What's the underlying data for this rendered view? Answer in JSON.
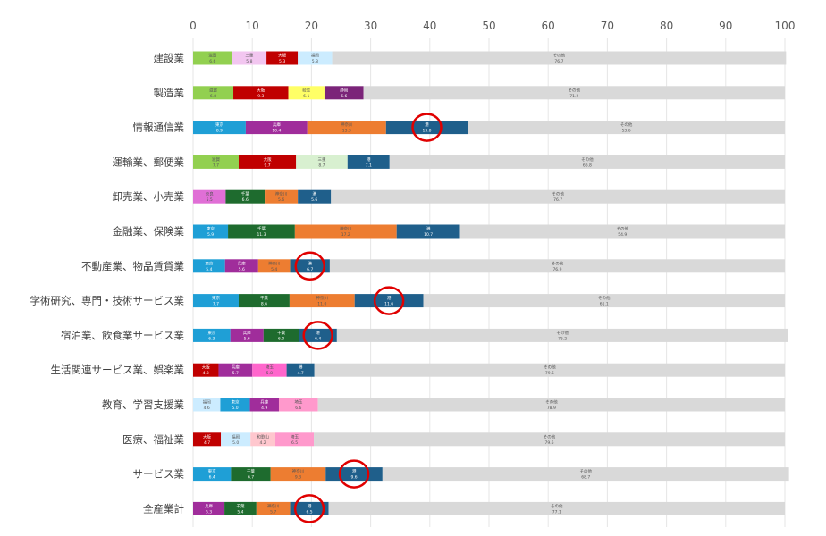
{
  "chart_data": {
    "type": "bar",
    "orientation": "horizontal",
    "stacked": true,
    "title": "",
    "xlabel": "",
    "ylabel": "",
    "xlim": [
      0,
      100
    ],
    "xticks": [
      "0",
      "10",
      "20",
      "30",
      "40",
      "50",
      "60",
      "70",
      "80",
      "90",
      "100"
    ],
    "grid": "vertical",
    "legend": "none",
    "colors": {
      "滋賀": "#92d050",
      "三重": "#c6efce",
      "京都": "#ddebf7",
      "大阪": "#c00000",
      "兵庫": "#9b2d91",
      "奈良": "#e06fd6",
      "和歌山": "#ffc7ce",
      "岐阜": "#ffff66",
      "静岡": "#7030a0",
      "愛知": "#00b050",
      "東京": "#1f9fd6",
      "千葉": "#1e6b2e",
      "埼玉": "#ff66cc",
      "神奈川": "#ed7d31",
      "福岡": "#ccecff",
      "港": "#1f5f8b",
      "その他": "#d9d9d9"
    },
    "categories": [
      {
        "label": "建設業",
        "segments": [
          {
            "name": "滋賀",
            "value": 6.6,
            "color": "#92d050"
          },
          {
            "name": "三重",
            "value": 5.8,
            "color": "#f2c6f0"
          },
          {
            "name": "大阪",
            "value": 5.3,
            "color": "#c00000"
          },
          {
            "name": "福岡",
            "value": 5.8,
            "color": "#ccecff"
          },
          {
            "name": "その他",
            "value": 76.7,
            "color": "#d9d9d9"
          }
        ]
      },
      {
        "label": "製造業",
        "segments": [
          {
            "name": "滋賀",
            "value": 6.8,
            "color": "#92d050"
          },
          {
            "name": "大阪",
            "value": 9.3,
            "color": "#c00000"
          },
          {
            "name": "岐阜",
            "value": 6.1,
            "color": "#ffff66"
          },
          {
            "name": "静岡",
            "value": 6.6,
            "color": "#7b2479"
          },
          {
            "name": "その他",
            "value": 71.2,
            "color": "#d9d9d9"
          }
        ]
      },
      {
        "label": "情報通信業",
        "segments": [
          {
            "name": "東京",
            "value": 8.9,
            "color": "#1f9fd6"
          },
          {
            "name": "兵庫",
            "value": 10.4,
            "color": "#a02d9b"
          },
          {
            "name": "神奈川",
            "value": 13.3,
            "color": "#ed7d31"
          },
          {
            "name": "港",
            "value": 13.8,
            "color": "#1f5f8b"
          },
          {
            "name": "その他",
            "value": 53.6,
            "color": "#d9d9d9"
          }
        ]
      },
      {
        "label": "運輸業、郵便業",
        "segments": [
          {
            "name": "滋賀",
            "value": 7.7,
            "color": "#92d050"
          },
          {
            "name": "大阪",
            "value": 9.7,
            "color": "#c00000"
          },
          {
            "name": "三重",
            "value": 8.7,
            "color": "#d8f0d0"
          },
          {
            "name": "港",
            "value": 7.1,
            "color": "#1f5f8b"
          },
          {
            "name": "その他",
            "value": 66.8,
            "color": "#d9d9d9"
          }
        ]
      },
      {
        "label": "卸売業、小売業",
        "segments": [
          {
            "name": "奈良",
            "value": 5.5,
            "color": "#e06fd6"
          },
          {
            "name": "千葉",
            "value": 6.6,
            "color": "#1e6b2e"
          },
          {
            "name": "神奈川",
            "value": 5.6,
            "color": "#ed7d31"
          },
          {
            "name": "港",
            "value": 5.6,
            "color": "#1f5f8b"
          },
          {
            "name": "その他",
            "value": 76.7,
            "color": "#d9d9d9"
          }
        ]
      },
      {
        "label": "金融業、保険業",
        "segments": [
          {
            "name": "東京",
            "value": 5.9,
            "color": "#1f9fd6"
          },
          {
            "name": "千葉",
            "value": 11.3,
            "color": "#1e6b2e"
          },
          {
            "name": "神奈川",
            "value": 17.2,
            "color": "#ed7d31"
          },
          {
            "name": "港",
            "value": 10.7,
            "color": "#1f5f8b"
          },
          {
            "name": "その他",
            "value": 54.9,
            "color": "#d9d9d9"
          }
        ]
      },
      {
        "label": "不動産業、物品賃貸業",
        "segments": [
          {
            "name": "東京",
            "value": 5.4,
            "color": "#1f9fd6"
          },
          {
            "name": "兵庫",
            "value": 5.6,
            "color": "#a02d9b"
          },
          {
            "name": "神奈川",
            "value": 5.4,
            "color": "#ed7d31"
          },
          {
            "name": "港",
            "value": 6.7,
            "color": "#1f5f8b"
          },
          {
            "name": "その他",
            "value": 76.9,
            "color": "#d9d9d9"
          }
        ]
      },
      {
        "label": "学術研究、専門・技術サービス業",
        "segments": [
          {
            "name": "東京",
            "value": 7.7,
            "color": "#1f9fd6"
          },
          {
            "name": "千葉",
            "value": 8.6,
            "color": "#1e6b2e"
          },
          {
            "name": "神奈川",
            "value": 11.0,
            "color": "#ed7d31"
          },
          {
            "name": "港",
            "value": 11.6,
            "color": "#1f5f8b"
          },
          {
            "name": "その他",
            "value": 61.1,
            "color": "#d9d9d9"
          }
        ]
      },
      {
        "label": "宿泊業、飲食業サービス業",
        "segments": [
          {
            "name": "東京",
            "value": 6.3,
            "color": "#1f9fd6"
          },
          {
            "name": "兵庫",
            "value": 5.6,
            "color": "#a02d9b"
          },
          {
            "name": "千葉",
            "value": 6.0,
            "color": "#1e6b2e"
          },
          {
            "name": "港",
            "value": 6.4,
            "color": "#1f5f8b"
          },
          {
            "name": "その他",
            "value": 76.2,
            "color": "#d9d9d9"
          }
        ]
      },
      {
        "label": "生活関連サービス業、娯楽業",
        "segments": [
          {
            "name": "大阪",
            "value": 4.3,
            "color": "#c00000"
          },
          {
            "name": "兵庫",
            "value": 5.7,
            "color": "#a02d9b"
          },
          {
            "name": "埼玉",
            "value": 5.8,
            "color": "#ff66cc"
          },
          {
            "name": "港",
            "value": 4.7,
            "color": "#1f5f8b"
          },
          {
            "name": "その他",
            "value": 79.5,
            "color": "#d9d9d9"
          }
        ]
      },
      {
        "label": "教育、学習支援業",
        "segments": [
          {
            "name": "福岡",
            "value": 4.6,
            "color": "#ccecff"
          },
          {
            "name": "東京",
            "value": 5.0,
            "color": "#1f9fd6"
          },
          {
            "name": "兵庫",
            "value": 4.9,
            "color": "#a02d9b"
          },
          {
            "name": "埼玉",
            "value": 6.6,
            "color": "#ff99cc"
          },
          {
            "name": "その他",
            "value": 78.9,
            "color": "#d9d9d9"
          }
        ]
      },
      {
        "label": "医療、福祉業",
        "segments": [
          {
            "name": "大阪",
            "value": 4.7,
            "color": "#c00000"
          },
          {
            "name": "福岡",
            "value": 5.0,
            "color": "#ccecff"
          },
          {
            "name": "和歌山",
            "value": 4.2,
            "color": "#ffc7ce"
          },
          {
            "name": "埼玉",
            "value": 6.5,
            "color": "#ff99cc"
          },
          {
            "name": "その他",
            "value": 79.6,
            "color": "#d9d9d9"
          }
        ]
      },
      {
        "label": "サービス業",
        "segments": [
          {
            "name": "東京",
            "value": 6.4,
            "color": "#1f9fd6"
          },
          {
            "name": "千葉",
            "value": 6.7,
            "color": "#1e6b2e"
          },
          {
            "name": "神奈川",
            "value": 9.3,
            "color": "#ed7d31"
          },
          {
            "name": "港",
            "value": 9.6,
            "color": "#1f5f8b"
          },
          {
            "name": "その他",
            "value": 68.7,
            "color": "#d9d9d9"
          }
        ]
      },
      {
        "label": "全産業計",
        "segments": [
          {
            "name": "兵庫",
            "value": 5.3,
            "color": "#a02d9b"
          },
          {
            "name": "千葉",
            "value": 5.4,
            "color": "#1e6b2e"
          },
          {
            "name": "神奈川",
            "value": 5.7,
            "color": "#ed7d31"
          },
          {
            "name": "港",
            "value": 6.5,
            "color": "#1f5f8b"
          },
          {
            "name": "その他",
            "value": 77.1,
            "color": "#d9d9d9"
          }
        ]
      }
    ],
    "highlight": {
      "segment": "港",
      "categories": [
        "情報通信業",
        "不動産業、物品賃貸業",
        "学術研究、専門・技術サービス業",
        "宿泊業、飲食業サービス業",
        "サービス業",
        "全産業計"
      ],
      "color": "#e00000"
    }
  }
}
